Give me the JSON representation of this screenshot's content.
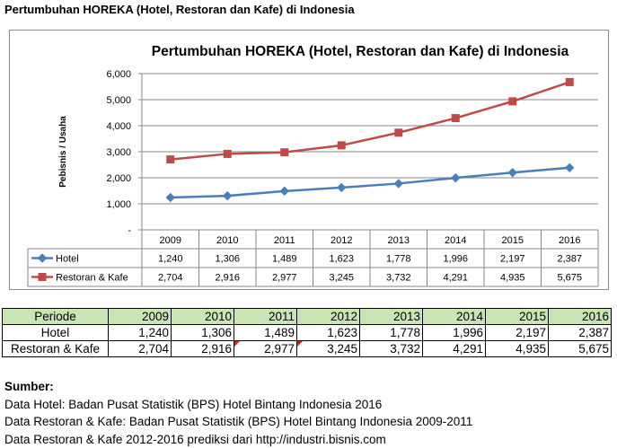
{
  "page_title": "Pertumbuhan HOREKA (Hotel, Restoran dan Kafe) di Indonesia",
  "chart_data": {
    "type": "line",
    "title": "Pertumbuhan HOREKA (Hotel, Restoran dan Kafe) di Indonesia",
    "xlabel": "",
    "ylabel": "Pebisnis / Usaha",
    "categories": [
      "2009",
      "2010",
      "2011",
      "2012",
      "2013",
      "2014",
      "2015",
      "2016"
    ],
    "y_ticks": [
      "-",
      "1,000",
      "2,000",
      "3,000",
      "4,000",
      "5,000",
      "6,000"
    ],
    "ylim": [
      0,
      6000
    ],
    "grid": true,
    "legend": "data-table",
    "series": [
      {
        "name": "Hotel",
        "color": "#4a7ebb",
        "marker": "diamond",
        "values": [
          1240,
          1306,
          1489,
          1623,
          1778,
          1996,
          2197,
          2387
        ],
        "labels": [
          "1,240",
          "1,306",
          "1,489",
          "1,623",
          "1,778",
          "1,996",
          "2,197",
          "2,387"
        ]
      },
      {
        "name": "Restoran & Kafe",
        "color": "#be4b48",
        "marker": "square",
        "values": [
          2704,
          2916,
          2977,
          3245,
          3732,
          4291,
          4935,
          5675
        ],
        "labels": [
          "2,704",
          "2,916",
          "2,977",
          "3,245",
          "3,732",
          "4,291",
          "4,935",
          "5,675"
        ]
      }
    ]
  },
  "sheet": {
    "header_label": "Periode",
    "years": [
      "2009",
      "2010",
      "2011",
      "2012",
      "2013",
      "2014",
      "2015",
      "2016"
    ],
    "rows": [
      {
        "label": "Hotel",
        "values": [
          "1,240",
          "1,306",
          "1,489",
          "1,623",
          "1,778",
          "1,996",
          "2,197",
          "2,387"
        ]
      },
      {
        "label": "Restoran & Kafe",
        "values": [
          "2,704",
          "2,916",
          "2,977",
          "3,245",
          "3,732",
          "4,291",
          "4,935",
          "5,675"
        ]
      }
    ]
  },
  "sources": {
    "heading": "Sumber:",
    "lines": [
      "Data Hotel: Badan Pusat Statistik (BPS) Hotel Bintang Indonesia 2016",
      "Data Restoran & Kafe: Badan Pusat Statistik (BPS) Hotel Bintang Indonesia 2009-2011",
      "Data Restoran & Kafe 2012-2016 prediksi dari http://industri.bisnis.com"
    ]
  }
}
